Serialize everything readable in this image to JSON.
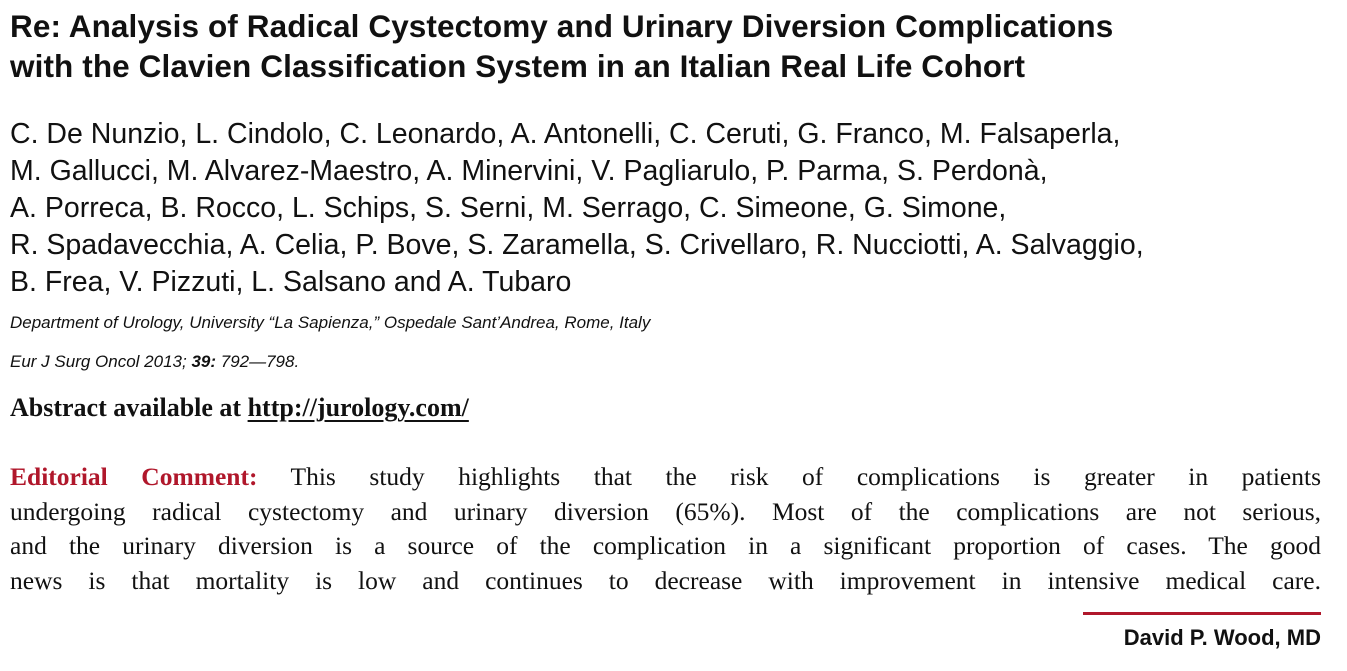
{
  "title": {
    "line1": "Re: Analysis of Radical Cystectomy and Urinary Diversion Complications",
    "line2": "with the Clavien Classification System in an Italian Real Life Cohort"
  },
  "authors": {
    "line1": "C. De Nunzio, L. Cindolo, C. Leonardo, A. Antonelli, C. Ceruti, G. Franco, M. Falsaperla,",
    "line2": "M. Gallucci, M. Alvarez-Maestro, A. Minervini, V. Pagliarulo, P. Parma, S. Perdonà,",
    "line3": "A. Porreca, B. Rocco, L. Schips, S. Serni, M. Serrago, C. Simeone, G. Simone,",
    "line4": "R. Spadavecchia, A. Celia, P. Bove, S. Zaramella, S. Crivellaro, R. Nucciotti, A. Salvaggio,",
    "line5": "B. Frea, V. Pizzuti, L. Salsano and A. Tubaro"
  },
  "affiliation": "Department of Urology, University “La Sapienza,” Ospedale Sant’Andrea, Rome, Italy",
  "citation": {
    "journal": "Eur J Surg Oncol 2013; ",
    "volume": "39:",
    "pages": " 792—798."
  },
  "abstract": {
    "label": "Abstract available at ",
    "link": "http://jurology.com/"
  },
  "editorial": {
    "label": "Editorial Comment:",
    "line1": " This study highlights that the risk of complications is greater in patients",
    "line2": "undergoing radical cystectomy and urinary diversion (65%). Most of the complications are not serious,",
    "line3": "and the urinary diversion is a source of the complication in a significant proportion of cases. The good",
    "line4": "news is that mortality is low and continues to decrease with improvement in intensive medical care."
  },
  "signature": "David P. Wood, MD",
  "colors": {
    "accent": "#b0172b",
    "text": "#111111",
    "background": "#ffffff"
  }
}
